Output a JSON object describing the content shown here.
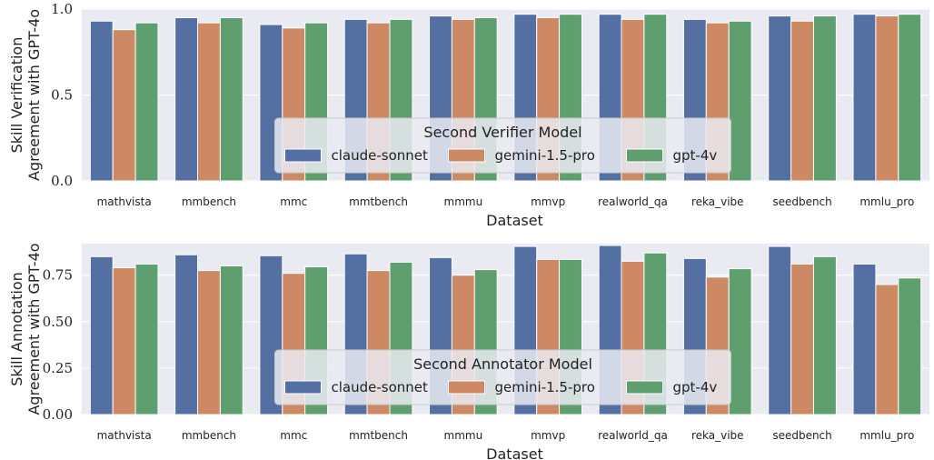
{
  "chart_data": [
    {
      "type": "bar",
      "ylabel": [
        "Skill Verification",
        "Agreement with GPT-4o"
      ],
      "xlabel": "Dataset",
      "ylim": [
        0,
        1.0
      ],
      "yticks": [
        "0.0",
        "0.5",
        "1.0"
      ],
      "ytick_values": [
        0,
        0.5,
        1.0
      ],
      "grid": true,
      "legend": {
        "title": "Second Verifier Model",
        "placement": "lower-center"
      },
      "categories": [
        "mathvista",
        "mmbench",
        "mmc",
        "mmtbench",
        "mmmu",
        "mmvp",
        "realworld_qa",
        "reka_vibe",
        "seedbench",
        "mmlu_pro"
      ],
      "series": [
        {
          "name": "claude-sonnet",
          "color": "#5470a3",
          "values": [
            0.93,
            0.95,
            0.91,
            0.94,
            0.96,
            0.97,
            0.97,
            0.94,
            0.96,
            0.97
          ]
        },
        {
          "name": "gemini-1.5-pro",
          "color": "#cc8963",
          "values": [
            0.88,
            0.92,
            0.89,
            0.92,
            0.94,
            0.95,
            0.94,
            0.92,
            0.93,
            0.96
          ]
        },
        {
          "name": "gpt-4v",
          "color": "#5f9e6e",
          "values": [
            0.92,
            0.95,
            0.92,
            0.94,
            0.95,
            0.97,
            0.97,
            0.93,
            0.96,
            0.97
          ]
        }
      ]
    },
    {
      "type": "bar",
      "ylabel": [
        "Skill Annotation",
        "Agreement with GPT-4o"
      ],
      "xlabel": "Dataset",
      "ylim": [
        0,
        0.92
      ],
      "yticks": [
        "0.00",
        "0.25",
        "0.50",
        "0.75"
      ],
      "ytick_values": [
        0,
        0.25,
        0.5,
        0.75
      ],
      "grid": true,
      "legend": {
        "title": "Second Annotator Model",
        "placement": "lower-center"
      },
      "categories": [
        "mathvista",
        "mmbench",
        "mmc",
        "mmtbench",
        "mmmu",
        "mmvp",
        "realworld_qa",
        "reka_vibe",
        "seedbench",
        "mmlu_pro"
      ],
      "series": [
        {
          "name": "claude-sonnet",
          "color": "#5470a3",
          "values": [
            0.85,
            0.86,
            0.855,
            0.865,
            0.845,
            0.905,
            0.91,
            0.84,
            0.905,
            0.81
          ]
        },
        {
          "name": "gemini-1.5-pro",
          "color": "#cc8963",
          "values": [
            0.79,
            0.775,
            0.76,
            0.775,
            0.75,
            0.835,
            0.825,
            0.74,
            0.81,
            0.7
          ]
        },
        {
          "name": "gpt-4v",
          "color": "#5f9e6e",
          "values": [
            0.81,
            0.8,
            0.795,
            0.82,
            0.78,
            0.835,
            0.87,
            0.785,
            0.85,
            0.735
          ]
        }
      ]
    }
  ]
}
